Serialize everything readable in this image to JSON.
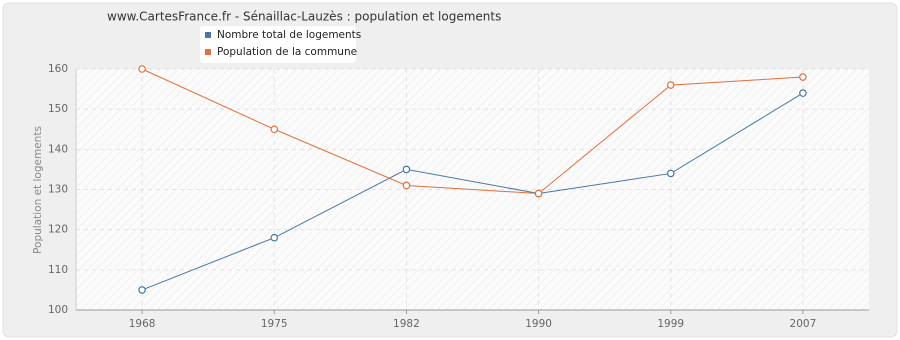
{
  "chart_data": {
    "type": "line",
    "title": "www.CartesFrance.fr - Sénaillac-Lauzès : population et logements",
    "y_label": "Population et logements",
    "categories": [
      "1968",
      "1975",
      "1982",
      "1990",
      "1999",
      "2007"
    ],
    "series": [
      {
        "name": "Nombre total de logements",
        "color": "#4a76a8",
        "values": [
          105,
          118,
          135,
          129,
          134,
          154
        ]
      },
      {
        "name": "Population de la commune",
        "color": "#e0703c",
        "values": [
          160,
          145,
          131,
          129,
          156,
          158
        ]
      }
    ],
    "ylim": [
      100,
      160
    ],
    "yticks": [
      100,
      110,
      120,
      130,
      140,
      150,
      160
    ],
    "grid": true
  }
}
